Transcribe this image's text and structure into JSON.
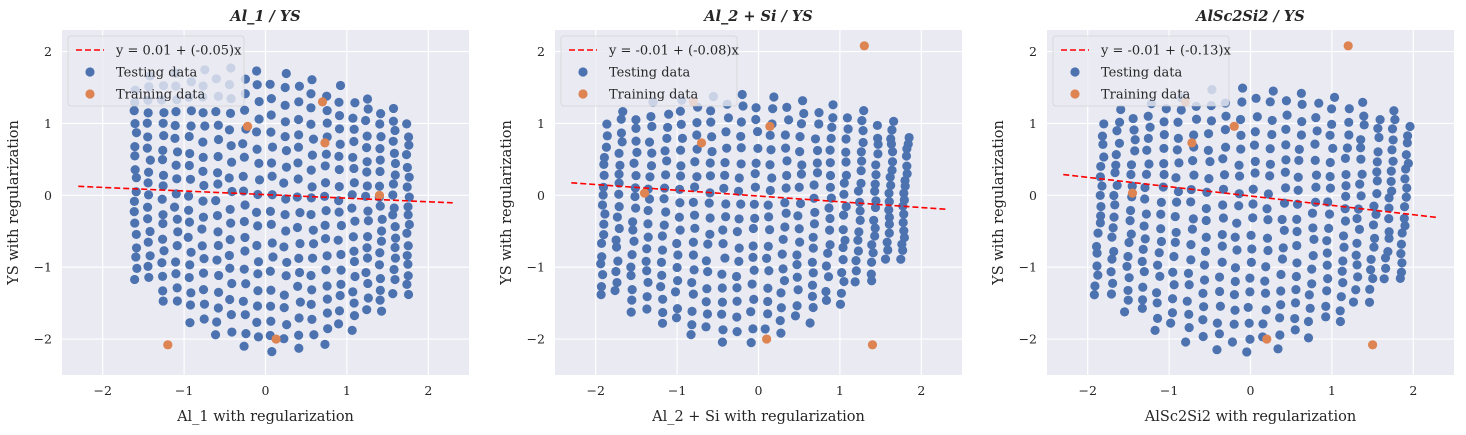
{
  "style": {
    "background": "#eaeaf2",
    "grid_color": "#ffffff",
    "testing_color": "#4c72b0",
    "training_color": "#dd8452",
    "fit_color": "#ff0000"
  },
  "chart_data": [
    {
      "type": "scatter",
      "title": "Al_1 / YS",
      "xlabel": "Al_1 with regularization",
      "ylabel": "YS with regularization",
      "xlim": [
        -2.5,
        2.5
      ],
      "ylim": [
        -2.5,
        2.3
      ],
      "xticks": [
        -2,
        -1,
        0,
        1,
        2
      ],
      "yticks": [
        -2,
        -1,
        0,
        1,
        2
      ],
      "grid": true,
      "legend_position": "upper-left",
      "fit": {
        "label": "y = 0.01 + (-0.05)x",
        "intercept": 0.01,
        "slope": -0.05,
        "x_range": [
          -2.3,
          2.3
        ]
      },
      "testing_label": "Testing data",
      "training_label": "Training data",
      "x_range": [
        -1.6,
        1.75
      ],
      "y_top_left": 1.55,
      "y_top_right": 1.05,
      "y_bot_left": -1.1,
      "y_bot_right": -1.3,
      "shift": 0,
      "training": [
        [
          -1.2,
          -2.08
        ],
        [
          0.13,
          -2.0
        ],
        [
          -0.22,
          0.96
        ],
        [
          0.7,
          1.3
        ],
        [
          0.73,
          0.73
        ],
        [
          1.4,
          0.0
        ]
      ]
    },
    {
      "type": "scatter",
      "title": "Al_2 + Si / YS",
      "xlabel": "Al_2 + Si with regularization",
      "ylabel": "YS with regularization",
      "xlim": [
        -2.5,
        2.5
      ],
      "ylim": [
        -2.5,
        2.3
      ],
      "xticks": [
        -2,
        -1,
        0,
        1,
        2
      ],
      "yticks": [
        -2,
        -1,
        0,
        1,
        2
      ],
      "grid": true,
      "legend_position": "upper-left",
      "fit": {
        "label": "y = -0.01 + (-0.08)x",
        "intercept": -0.01,
        "slope": -0.08,
        "x_range": [
          -2.3,
          2.3
        ]
      },
      "testing_label": "Testing data",
      "training_label": "Training data",
      "x_range": [
        -1.9,
        1.8
      ],
      "y_top_left": 1.05,
      "y_top_right": 0.9,
      "y_bot_left": -1.3,
      "y_bot_right": -0.8,
      "shift": 0.25,
      "training": [
        [
          -1.4,
          0.03
        ],
        [
          -0.7,
          0.73
        ],
        [
          0.14,
          0.96
        ],
        [
          1.3,
          2.08
        ],
        [
          0.1,
          -2.0
        ],
        [
          1.4,
          -2.08
        ],
        [
          -0.8,
          1.3
        ]
      ]
    },
    {
      "type": "scatter",
      "title": "AlSc2Si2 / YS",
      "xlabel": "AlSc2Si2 with regularization",
      "ylabel": "YS with regularization",
      "xlim": [
        -2.5,
        2.5
      ],
      "ylim": [
        -2.5,
        2.3
      ],
      "xticks": [
        -2,
        -1,
        0,
        1,
        2
      ],
      "yticks": [
        -2,
        -1,
        0,
        1,
        2
      ],
      "grid": true,
      "legend_position": "upper-left",
      "fit": {
        "label": "y = -0.01 + (-0.13)x",
        "intercept": -0.01,
        "slope": -0.13,
        "x_range": [
          -2.3,
          2.3
        ]
      },
      "testing_label": "Testing data",
      "training_label": "Training data",
      "x_range": [
        -1.85,
        1.9
      ],
      "y_top_left": 1.05,
      "y_top_right": 1.05,
      "y_bot_left": -1.3,
      "y_bot_right": -1.1,
      "shift": 0.35,
      "training": [
        [
          -1.45,
          0.03
        ],
        [
          -0.72,
          0.73
        ],
        [
          -0.2,
          0.96
        ],
        [
          1.2,
          2.08
        ],
        [
          0.2,
          -2.0
        ],
        [
          1.5,
          -2.08
        ],
        [
          -0.8,
          1.3
        ]
      ]
    }
  ]
}
